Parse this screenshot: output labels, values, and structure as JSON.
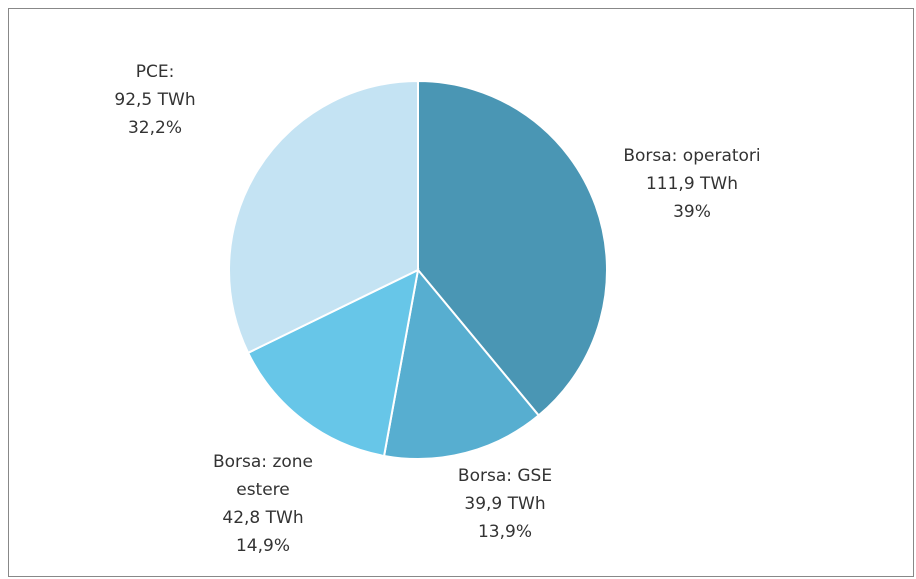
{
  "chart_data": {
    "type": "pie",
    "categories": [
      "Borsa: operatori",
      "Borsa: GSE",
      "Borsa: zone estere",
      "PCE:"
    ],
    "values": [
      111.9,
      39.9,
      42.8,
      92.5
    ],
    "value_labels": [
      "111,9 TWh",
      "39,9 TWh",
      "42,8 TWh",
      "92,5 TWh"
    ],
    "percents": [
      39,
      13.9,
      14.9,
      32.2
    ],
    "percent_labels": [
      "39%",
      "13,9%",
      "14,9%",
      "32,2%"
    ],
    "colors": [
      "#4a96b4",
      "#57aed0",
      "#67c6e8",
      "#c4e3f3"
    ]
  }
}
